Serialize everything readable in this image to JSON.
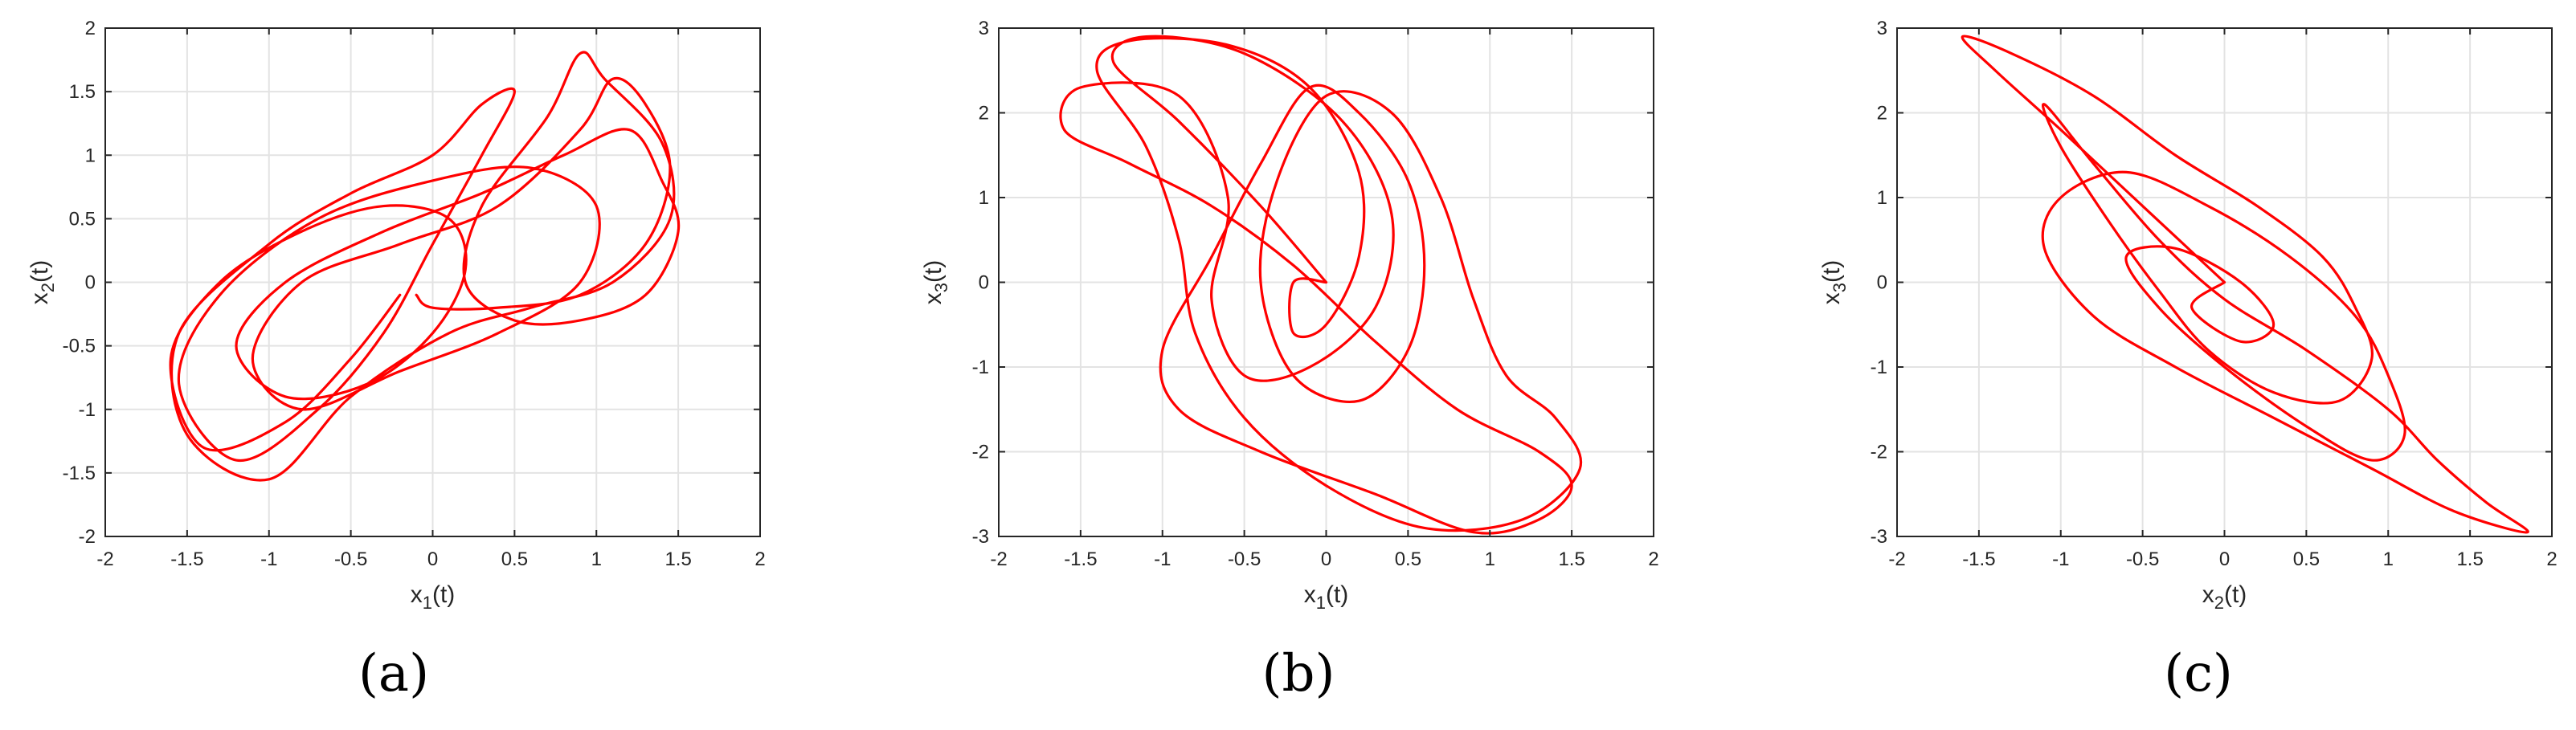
{
  "chart_data": [
    {
      "type": "line",
      "panel": "(a)",
      "xlabel": "x1(t)",
      "ylabel": "x2(t)",
      "xlabel_parts": {
        "base": "x",
        "sub": "1",
        "rest": "(t)"
      },
      "ylabel_parts": {
        "base": "x",
        "sub": "2",
        "rest": "(t)"
      },
      "xlim": [
        -2,
        2
      ],
      "ylim": [
        -2,
        2
      ],
      "xticks": [
        -2,
        -1.5,
        -1,
        -0.5,
        0,
        0.5,
        1,
        1.5,
        2
      ],
      "yticks": [
        -2,
        -1.5,
        -1,
        -0.5,
        0,
        0.5,
        1,
        1.5,
        2
      ],
      "grid": true,
      "series": [
        {
          "color": "#ff0000",
          "description": "chaotic attractor phase portrait, x1 in about [-1.6, 1.5], x2 in about [-1.6, 1.85]",
          "points": [
            [
              -0.2,
              -0.1
            ],
            [
              -0.5,
              -0.6
            ],
            [
              -0.9,
              -1.1
            ],
            [
              -1.4,
              -1.3
            ],
            [
              -1.6,
              -0.6
            ],
            [
              -1.3,
              0.0
            ],
            [
              -0.8,
              0.4
            ],
            [
              -0.3,
              0.6
            ],
            [
              0.1,
              0.5
            ],
            [
              0.2,
              0.1
            ],
            [
              0.0,
              -0.4
            ],
            [
              -0.4,
              -0.8
            ],
            [
              -0.9,
              -0.9
            ],
            [
              -1.2,
              -0.5
            ],
            [
              -0.9,
              0.0
            ],
            [
              -0.3,
              0.4
            ],
            [
              0.3,
              0.7
            ],
            [
              0.8,
              1.0
            ],
            [
              1.2,
              1.2
            ],
            [
              1.4,
              0.8
            ],
            [
              1.5,
              0.4
            ],
            [
              1.3,
              -0.1
            ],
            [
              0.9,
              -0.3
            ],
            [
              0.5,
              -0.3
            ],
            [
              0.2,
              0.0
            ],
            [
              0.3,
              0.6
            ],
            [
              0.7,
              1.3
            ],
            [
              0.9,
              1.8
            ],
            [
              1.05,
              1.6
            ],
            [
              1.4,
              1.1
            ],
            [
              1.45,
              0.5
            ],
            [
              1.1,
              0.0
            ],
            [
              0.6,
              -0.2
            ],
            [
              0.1,
              -0.4
            ],
            [
              -0.5,
              -0.9
            ],
            [
              -1.0,
              -1.55
            ],
            [
              -1.5,
              -1.2
            ],
            [
              -1.55,
              -0.4
            ],
            [
              -1.0,
              0.3
            ],
            [
              -0.5,
              0.7
            ],
            [
              0.0,
              1.0
            ],
            [
              0.3,
              1.4
            ],
            [
              0.5,
              1.5
            ],
            [
              0.3,
              1.0
            ],
            [
              0.0,
              0.3
            ],
            [
              -0.3,
              -0.4
            ],
            [
              -0.7,
              -1.0
            ],
            [
              -1.2,
              -1.4
            ],
            [
              -1.55,
              -0.8
            ],
            [
              -1.3,
              -0.1
            ],
            [
              -0.7,
              0.5
            ],
            [
              0.0,
              0.8
            ],
            [
              0.6,
              0.9
            ],
            [
              1.0,
              0.6
            ],
            [
              0.9,
              0.0
            ],
            [
              0.4,
              -0.4
            ],
            [
              -0.2,
              -0.7
            ],
            [
              -0.8,
              -1.0
            ],
            [
              -1.1,
              -0.6
            ],
            [
              -0.8,
              0.0
            ],
            [
              -0.2,
              0.3
            ],
            [
              0.4,
              0.6
            ],
            [
              0.9,
              1.2
            ],
            [
              1.1,
              1.6
            ],
            [
              1.3,
              1.4
            ],
            [
              1.45,
              0.9
            ],
            [
              1.3,
              0.3
            ],
            [
              0.9,
              -0.1
            ],
            [
              0.4,
              -0.2
            ],
            [
              0.0,
              -0.2
            ],
            [
              -0.1,
              -0.1
            ]
          ]
        }
      ]
    },
    {
      "type": "line",
      "panel": "(b)",
      "xlabel": "x1(t)",
      "ylabel": "x3(t)",
      "xlabel_parts": {
        "base": "x",
        "sub": "1",
        "rest": "(t)"
      },
      "ylabel_parts": {
        "base": "x",
        "sub": "3",
        "rest": "(t)"
      },
      "xlim": [
        -2,
        2
      ],
      "ylim": [
        -3,
        3
      ],
      "xticks": [
        -2,
        -1.5,
        -1,
        -0.5,
        0,
        0.5,
        1,
        1.5,
        2
      ],
      "yticks": [
        -3,
        -2,
        -1,
        0,
        1,
        2,
        3
      ],
      "grid": true,
      "series": [
        {
          "color": "#ff0000",
          "description": "chaotic attractor phase portrait, x1 in about [-1.6, 1.55], x3 in about [-2.95, 2.9]",
          "points": [
            [
              0.0,
              0.0
            ],
            [
              -0.4,
              0.9
            ],
            [
              -0.9,
              1.9
            ],
            [
              -1.3,
              2.6
            ],
            [
              -1.1,
              2.9
            ],
            [
              -0.5,
              2.7
            ],
            [
              0.1,
              1.9
            ],
            [
              0.4,
              0.8
            ],
            [
              0.3,
              -0.3
            ],
            [
              -0.1,
              -1.0
            ],
            [
              -0.5,
              -1.1
            ],
            [
              -0.7,
              -0.2
            ],
            [
              -0.6,
              1.0
            ],
            [
              -0.9,
              2.2
            ],
            [
              -1.5,
              2.3
            ],
            [
              -1.6,
              1.8
            ],
            [
              -1.2,
              1.4
            ],
            [
              -0.7,
              0.9
            ],
            [
              -0.2,
              0.2
            ],
            [
              0.3,
              -0.7
            ],
            [
              0.8,
              -1.5
            ],
            [
              1.3,
              -2.0
            ],
            [
              1.5,
              -2.4
            ],
            [
              1.3,
              -2.8
            ],
            [
              0.9,
              -2.95
            ],
            [
              0.3,
              -2.5
            ],
            [
              -0.4,
              -2.0
            ],
            [
              -0.9,
              -1.5
            ],
            [
              -1.0,
              -0.8
            ],
            [
              -0.7,
              0.3
            ],
            [
              -0.4,
              1.4
            ],
            [
              -0.1,
              2.3
            ],
            [
              0.2,
              2.0
            ],
            [
              0.5,
              1.2
            ],
            [
              0.6,
              0.2
            ],
            [
              0.5,
              -0.8
            ],
            [
              0.2,
              -1.4
            ],
            [
              -0.2,
              -1.1
            ],
            [
              -0.4,
              0.0
            ],
            [
              -0.3,
              1.2
            ],
            [
              0.0,
              2.2
            ],
            [
              0.4,
              2.0
            ],
            [
              0.7,
              1.0
            ],
            [
              0.9,
              -0.2
            ],
            [
              1.1,
              -1.1
            ],
            [
              1.4,
              -1.6
            ],
            [
              1.55,
              -2.2
            ],
            [
              1.2,
              -2.8
            ],
            [
              0.6,
              -2.9
            ],
            [
              0.0,
              -2.4
            ],
            [
              -0.5,
              -1.6
            ],
            [
              -0.8,
              -0.6
            ],
            [
              -0.9,
              0.5
            ],
            [
              -1.1,
              1.6
            ],
            [
              -1.4,
              2.5
            ],
            [
              -1.2,
              2.85
            ],
            [
              -0.6,
              2.8
            ],
            [
              -0.1,
              2.3
            ],
            [
              0.2,
              1.3
            ],
            [
              0.2,
              0.3
            ],
            [
              0.0,
              -0.5
            ],
            [
              -0.2,
              -0.6
            ],
            [
              -0.2,
              0.0
            ],
            [
              0.0,
              0.0
            ]
          ]
        }
      ]
    },
    {
      "type": "line",
      "panel": "(c)",
      "xlabel": "x2(t)",
      "ylabel": "x3(t)",
      "xlabel_parts": {
        "base": "x",
        "sub": "2",
        "rest": "(t)"
      },
      "ylabel_parts": {
        "base": "x",
        "sub": "3",
        "rest": "(t)"
      },
      "xlim": [
        -2,
        2
      ],
      "ylim": [
        -3,
        3
      ],
      "xticks": [
        -2,
        -1.5,
        -1,
        -0.5,
        0,
        0.5,
        1,
        1.5,
        2
      ],
      "yticks": [
        -3,
        -2,
        -1,
        0,
        1,
        2,
        3
      ],
      "grid": true,
      "series": [
        {
          "color": "#ff0000",
          "description": "chaotic attractor phase portrait along descending diagonal, x2 in about [-1.6, 1.85], x3 in about [-2.95, 2.9]",
          "points": [
            [
              0.0,
              0.0
            ],
            [
              -0.5,
              0.9
            ],
            [
              -1.0,
              1.8
            ],
            [
              -1.4,
              2.5
            ],
            [
              -1.6,
              2.9
            ],
            [
              -1.3,
              2.7
            ],
            [
              -0.8,
              2.2
            ],
            [
              -0.3,
              1.5
            ],
            [
              0.2,
              0.9
            ],
            [
              0.6,
              0.3
            ],
            [
              0.8,
              -0.3
            ],
            [
              0.9,
              -0.9
            ],
            [
              0.7,
              -1.4
            ],
            [
              0.3,
              -1.3
            ],
            [
              -0.1,
              -0.8
            ],
            [
              -0.4,
              -0.1
            ],
            [
              -0.7,
              0.7
            ],
            [
              -1.0,
              1.6
            ],
            [
              -1.1,
              2.1
            ],
            [
              -0.8,
              1.4
            ],
            [
              -0.4,
              0.5
            ],
            [
              0.0,
              -0.2
            ],
            [
              0.5,
              -0.8
            ],
            [
              1.0,
              -1.5
            ],
            [
              1.3,
              -2.1
            ],
            [
              1.6,
              -2.6
            ],
            [
              1.85,
              -2.95
            ],
            [
              1.4,
              -2.7
            ],
            [
              0.9,
              -2.2
            ],
            [
              0.3,
              -1.6
            ],
            [
              -0.3,
              -1.0
            ],
            [
              -0.8,
              -0.4
            ],
            [
              -1.1,
              0.4
            ],
            [
              -1.0,
              1.0
            ],
            [
              -0.6,
              1.3
            ],
            [
              -0.1,
              0.9
            ],
            [
              0.4,
              0.3
            ],
            [
              0.8,
              -0.4
            ],
            [
              1.0,
              -1.1
            ],
            [
              1.1,
              -1.8
            ],
            [
              0.9,
              -2.1
            ],
            [
              0.5,
              -1.7
            ],
            [
              0.0,
              -1.0
            ],
            [
              -0.4,
              -0.3
            ],
            [
              -0.6,
              0.3
            ],
            [
              -0.3,
              0.4
            ],
            [
              0.1,
              0.0
            ],
            [
              0.3,
              -0.5
            ],
            [
              0.1,
              -0.7
            ],
            [
              -0.2,
              -0.3
            ],
            [
              0.0,
              0.0
            ]
          ]
        }
      ]
    }
  ]
}
